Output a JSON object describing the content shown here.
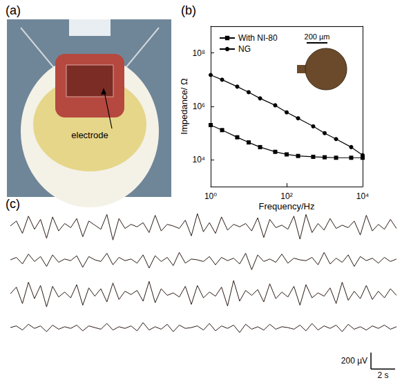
{
  "photo_panel": {
    "panel": "(a)",
    "label": "electrode"
  },
  "chart_data": [
    {
      "type": "line",
      "panel": "(b)",
      "log": true,
      "x_label": "Frequency/Hz",
      "y_label": "Impedance/ Ω",
      "x": [
        1,
        2,
        5,
        10,
        20,
        50,
        100,
        200,
        500,
        1000,
        2000,
        5000,
        10000
      ],
      "series": [
        {
          "name": "With NI-80",
          "color": "#000000",
          "marker": "square",
          "line_style": "solid",
          "values": [
            200000,
            130000,
            70000,
            45000,
            30000,
            20000,
            16000,
            14000,
            13000,
            12500,
            12000,
            12000,
            12000
          ]
        },
        {
          "name": "NG",
          "color": "#000000",
          "marker": "circle",
          "line_style": "solid",
          "values": [
            15000000,
            10000000,
            5500000,
            3400000,
            2000000,
            1100000,
            600000,
            360000,
            180000,
            100000,
            60000,
            30000,
            15000
          ]
        }
      ],
      "xlim": [
        1,
        10000
      ],
      "xticks": [
        {
          "value": 1,
          "label": "10⁰"
        },
        {
          "value": 100,
          "label": "10²"
        },
        {
          "value": 10000,
          "label": "10⁴"
        }
      ],
      "ylim": [
        1000,
        1000000000
      ],
      "yticks": [
        {
          "value": 10000,
          "label": "10⁴"
        },
        {
          "value": 1000000,
          "label": "10⁶"
        },
        {
          "value": 100000000,
          "label": "10⁸"
        }
      ],
      "legend": "top-left",
      "grid": false,
      "inset": {
        "scale_label": "200 µm"
      }
    },
    {
      "type": "line",
      "panel": "(c)",
      "tick_labels": false,
      "grid": false,
      "x": [
        0,
        0.5,
        1,
        1.5,
        2,
        2.5,
        3,
        3.5,
        4,
        4.5,
        5,
        5.5,
        6,
        6.5,
        7,
        7.5,
        8,
        8.5,
        9,
        9.5,
        10,
        10.5,
        11,
        11.5,
        12,
        12.5,
        13,
        13.5,
        14,
        14.5,
        15,
        15.5,
        16,
        16.5,
        17,
        17.5,
        18,
        18.5,
        19,
        19.5,
        20,
        20.5,
        21,
        21.5,
        22,
        22.5,
        23,
        23.5,
        24,
        24.5,
        25,
        25.5,
        26,
        26.5,
        27,
        27.5,
        28,
        28.5,
        29,
        29.5,
        30,
        30.5,
        31,
        31.5,
        32
      ],
      "xlim": [
        0,
        32
      ],
      "ylim": [
        -210,
        210
      ],
      "series": [
        {
          "color": "#2a1a14",
          "line_style": "solid",
          "values": [
            0,
            60,
            -90,
            120,
            -40,
            80,
            -150,
            110,
            -60,
            30,
            -20,
            90,
            -130,
            60,
            10,
            -40,
            140,
            -170,
            90,
            -30,
            20,
            -10,
            40,
            -80,
            130,
            -60,
            20,
            0,
            -30,
            70,
            -120,
            150,
            -70,
            40,
            -90,
            110,
            -50,
            20,
            -10,
            30,
            -60,
            100,
            -140,
            80,
            -20,
            10,
            -40,
            120,
            -160,
            140,
            -80,
            30,
            -50,
            90,
            -30,
            10,
            -20,
            60,
            -110,
            130,
            -60,
            20,
            -40,
            80,
            -30
          ]
        },
        {
          "color": "#2a1a14",
          "line_style": "solid",
          "values": [
            0,
            30,
            -50,
            70,
            -20,
            40,
            -80,
            60,
            -30,
            10,
            -10,
            50,
            -90,
            40,
            0,
            -20,
            80,
            -60,
            30,
            -10,
            10,
            -40,
            60,
            -100,
            50,
            -20,
            30,
            -70,
            90,
            -40,
            10,
            0,
            -20,
            40,
            -60,
            30,
            -10,
            20,
            -50,
            80,
            -120,
            60,
            -20,
            10,
            -30,
            70,
            -40,
            20,
            0,
            -10,
            30,
            -60,
            90,
            -50,
            20,
            -30,
            60,
            -80,
            40,
            -10,
            20,
            -40,
            30,
            -20,
            10
          ]
        },
        {
          "color": "#2a1a14",
          "line_style": "solid",
          "values": [
            0,
            80,
            -120,
            140,
            -60,
            100,
            -160,
            90,
            -40,
            20,
            -50,
            110,
            -140,
            70,
            -30,
            60,
            -100,
            130,
            -70,
            30,
            -10,
            40,
            -90,
            150,
            -110,
            60,
            -20,
            10,
            -40,
            90,
            -130,
            100,
            -50,
            20,
            -30,
            80,
            -150,
            160,
            -90,
            40,
            -20,
            50,
            -100,
            120,
            -60,
            20,
            -40,
            90,
            -140,
            110,
            -50,
            10,
            -30,
            70,
            -120,
            140,
            -80,
            30,
            -60,
            100,
            -70,
            30,
            -50,
            60,
            -20
          ]
        },
        {
          "color": "#2a1a14",
          "line_style": "solid",
          "values": [
            0,
            20,
            -30,
            40,
            -10,
            20,
            -50,
            30,
            -20,
            10,
            -10,
            30,
            -40,
            20,
            0,
            -20,
            50,
            -30,
            10,
            -10,
            20,
            -40,
            60,
            -30,
            10,
            -20,
            40,
            -50,
            30,
            -10,
            0,
            20,
            -30,
            50,
            -40,
            20,
            -10,
            30,
            -60,
            40,
            -20,
            10,
            -30,
            40,
            -20,
            10,
            0,
            -20,
            30,
            -40,
            50,
            -30,
            20,
            -10,
            30,
            -50,
            40,
            -20,
            10,
            -30,
            20,
            -10,
            30,
            -20,
            10
          ]
        }
      ],
      "scale_bar": {
        "x": 2,
        "x_label": "2 s",
        "y": 200,
        "y_label": "200 µV"
      }
    }
  ]
}
